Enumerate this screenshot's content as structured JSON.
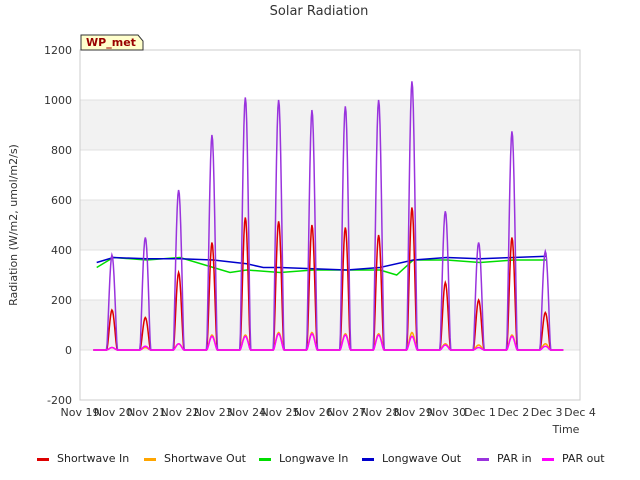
{
  "chart_data": {
    "type": "line",
    "title": "Solar Radiation",
    "xlabel": "Time",
    "ylabel": "Radiation (W/m2, umol/m2/s)",
    "badge": "WP_met",
    "ylim": [
      -200,
      1200
    ],
    "yticks": [
      -200,
      0,
      200,
      400,
      600,
      800,
      1000,
      1200
    ],
    "xlim": [
      0,
      15
    ],
    "xticks": [
      "Nov 19",
      "Nov 20",
      "Nov 21",
      "Nov 22",
      "Nov 23",
      "Nov 24",
      "Nov 25",
      "Nov 26",
      "Nov 27",
      "Nov 28",
      "Nov 29",
      "Nov 30",
      "Dec 1",
      "Dec 2",
      "Dec 3",
      "Dec 4"
    ],
    "grid": true,
    "legend_position": "bottom",
    "series": [
      {
        "name": "Shortwave In",
        "color": "#dd0000",
        "daily_peak": [
          160,
          130,
          310,
          430,
          530,
          515,
          500,
          490,
          460,
          570,
          270,
          200,
          450,
          150
        ]
      },
      {
        "name": "Shortwave Out",
        "color": "#ffa500",
        "daily_peak": [
          10,
          10,
          25,
          60,
          60,
          70,
          70,
          65,
          65,
          70,
          25,
          20,
          60,
          25
        ]
      },
      {
        "name": "Longwave In",
        "color": "#00dd00",
        "x": [
          0.5,
          1,
          2,
          3,
          4,
          4.5,
          5,
          6,
          7,
          8,
          9,
          9.5,
          10,
          11,
          12,
          13,
          14
        ],
        "values": [
          330,
          370,
          360,
          370,
          330,
          310,
          320,
          310,
          320,
          320,
          320,
          300,
          360,
          360,
          350,
          360,
          360
        ]
      },
      {
        "name": "Longwave Out",
        "color": "#0000cc",
        "x": [
          0.5,
          1,
          2,
          3,
          4,
          5,
          5.5,
          6,
          7,
          8,
          9,
          10,
          11,
          12,
          13,
          14
        ],
        "values": [
          350,
          370,
          365,
          365,
          360,
          345,
          330,
          330,
          325,
          320,
          330,
          360,
          370,
          365,
          370,
          375
        ]
      },
      {
        "name": "PAR in",
        "color": "#9933dd",
        "daily_peak": [
          380,
          450,
          640,
          860,
          1010,
          1000,
          960,
          975,
          1000,
          1075,
          555,
          430,
          875,
          395
        ]
      },
      {
        "name": "PAR out",
        "color": "#ff00ff",
        "daily_peak": [
          10,
          15,
          25,
          55,
          55,
          65,
          65,
          60,
          60,
          55,
          20,
          10,
          55,
          15
        ]
      }
    ]
  }
}
